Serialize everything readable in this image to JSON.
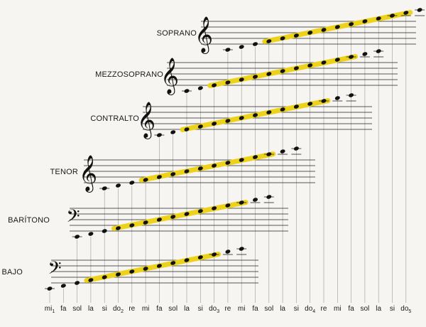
{
  "note_axis": [
    "mi1",
    "fa",
    "sol",
    "la",
    "si",
    "do2",
    "re",
    "mi",
    "fa",
    "sol",
    "la",
    "si",
    "do3",
    "re",
    "mi",
    "fa",
    "sol",
    "la",
    "si",
    "do4",
    "re",
    "mi",
    "fa",
    "sol",
    "la",
    "si",
    "do5"
  ],
  "note_labels": [
    {
      "base": "mi",
      "sub": "1"
    },
    {
      "base": "fa",
      "sub": ""
    },
    {
      "base": "sol",
      "sub": ""
    },
    {
      "base": "la",
      "sub": ""
    },
    {
      "base": "si",
      "sub": ""
    },
    {
      "base": "do",
      "sub": "2"
    },
    {
      "base": "re",
      "sub": ""
    },
    {
      "base": "mi",
      "sub": ""
    },
    {
      "base": "fa",
      "sub": ""
    },
    {
      "base": "sol",
      "sub": ""
    },
    {
      "base": "la",
      "sub": ""
    },
    {
      "base": "si",
      "sub": ""
    },
    {
      "base": "do",
      "sub": "3"
    },
    {
      "base": "re",
      "sub": ""
    },
    {
      "base": "mi",
      "sub": ""
    },
    {
      "base": "fa",
      "sub": ""
    },
    {
      "base": "sol",
      "sub": ""
    },
    {
      "base": "la",
      "sub": ""
    },
    {
      "base": "si",
      "sub": ""
    },
    {
      "base": "do",
      "sub": "4"
    },
    {
      "base": "re",
      "sub": ""
    },
    {
      "base": "mi",
      "sub": ""
    },
    {
      "base": "fa",
      "sub": ""
    },
    {
      "base": "sol",
      "sub": ""
    },
    {
      "base": "la",
      "sub": ""
    },
    {
      "base": "si",
      "sub": ""
    },
    {
      "base": "do",
      "sub": "5"
    }
  ],
  "colors": {
    "highlight": "#ecd21a",
    "note": "#111111",
    "staff": "#222222",
    "guide": "#9a9a9a"
  },
  "voices": [
    {
      "name": "SOPRANO",
      "clef": "treble-clef-icon",
      "range_start": "re",
      "range_end": "do5",
      "note_count": 17,
      "highlight_notes": [
        3,
        13
      ]
    },
    {
      "name": "MEZZOSOPRANO",
      "clef": "treble-clef-icon",
      "range_start": "la",
      "range_end": "la",
      "note_count": 15,
      "highlight_notes": [
        2,
        12
      ]
    },
    {
      "name": "CONTRALTO",
      "clef": "treble-clef-icon",
      "range_start": "fa",
      "range_end": "fa",
      "note_count": 15,
      "highlight_notes": [
        2,
        12
      ]
    },
    {
      "name": "TENOR",
      "clef": "treble-8-clef-icon",
      "range_start": "si",
      "range_end": "re",
      "note_count": 15,
      "highlight_notes": [
        3,
        12
      ]
    },
    {
      "name": "BARÍTONO",
      "clef": "bass-clef-icon",
      "range_start": "la",
      "range_end": "la",
      "note_count": 15,
      "highlight_notes": [
        3,
        12
      ]
    },
    {
      "name": "BAJO",
      "clef": "bass-clef-icon",
      "range_start": "mi1",
      "range_end": "mi",
      "note_count": 15,
      "highlight_notes": [
        3,
        12
      ]
    }
  ]
}
